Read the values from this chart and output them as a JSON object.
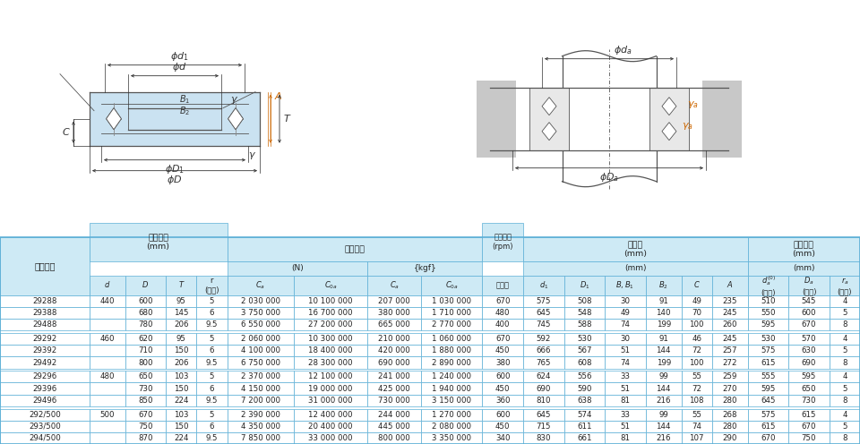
{
  "header_light": "#ceeaf5",
  "white": "#ffffff",
  "border": "#5bafd6",
  "text_dark": "#333333",
  "orange": "#e07020",
  "blue_dim": "#4a7fa8",
  "bearing_blue": "#a8d0e8",
  "gray_bg": "#cccccc",
  "rows": [
    [
      "29288",
      "440",
      "600",
      "95",
      "5",
      "2 030 000",
      "10 100 000",
      "207 000",
      "1 030 000",
      "670",
      "575",
      "508",
      "30",
      "91",
      "49",
      "235",
      "510",
      "545",
      "4"
    ],
    [
      "29388",
      "",
      "680",
      "145",
      "6",
      "3 750 000",
      "16 700 000",
      "380 000",
      "1 710 000",
      "480",
      "645",
      "548",
      "49",
      "140",
      "70",
      "245",
      "550",
      "600",
      "5"
    ],
    [
      "29488",
      "",
      "780",
      "206",
      "9.5",
      "6 550 000",
      "27 200 000",
      "665 000",
      "2 770 000",
      "400",
      "745",
      "588",
      "74",
      "199",
      "100",
      "260",
      "595",
      "670",
      "8"
    ],
    [
      "29292",
      "460",
      "620",
      "95",
      "5",
      "2 060 000",
      "10 300 000",
      "210 000",
      "1 060 000",
      "670",
      "592",
      "530",
      "30",
      "91",
      "46",
      "245",
      "530",
      "570",
      "4"
    ],
    [
      "29392",
      "",
      "710",
      "150",
      "6",
      "4 100 000",
      "18 400 000",
      "420 000",
      "1 880 000",
      "450",
      "666",
      "567",
      "51",
      "144",
      "72",
      "257",
      "575",
      "630",
      "5"
    ],
    [
      "29492",
      "",
      "800",
      "206",
      "9.5",
      "6 750 000",
      "28 300 000",
      "690 000",
      "2 890 000",
      "380",
      "765",
      "608",
      "74",
      "199",
      "100",
      "272",
      "615",
      "690",
      "8"
    ],
    [
      "29296",
      "480",
      "650",
      "103",
      "5",
      "2 370 000",
      "12 100 000",
      "241 000",
      "1 240 000",
      "600",
      "624",
      "556",
      "33",
      "99",
      "55",
      "259",
      "555",
      "595",
      "4"
    ],
    [
      "29396",
      "",
      "730",
      "150",
      "6",
      "4 150 000",
      "19 000 000",
      "425 000",
      "1 940 000",
      "450",
      "690",
      "590",
      "51",
      "144",
      "72",
      "270",
      "595",
      "650",
      "5"
    ],
    [
      "29496",
      "",
      "850",
      "224",
      "9.5",
      "7 200 000",
      "31 000 000",
      "730 000",
      "3 150 000",
      "360",
      "810",
      "638",
      "81",
      "216",
      "108",
      "280",
      "645",
      "730",
      "8"
    ],
    [
      "292/500",
      "500",
      "670",
      "103",
      "5",
      "2 390 000",
      "12 400 000",
      "244 000",
      "1 270 000",
      "600",
      "645",
      "574",
      "33",
      "99",
      "55",
      "268",
      "575",
      "615",
      "4"
    ],
    [
      "293/500",
      "",
      "750",
      "150",
      "6",
      "4 350 000",
      "20 400 000",
      "445 000",
      "2 080 000",
      "450",
      "715",
      "611",
      "51",
      "144",
      "74",
      "280",
      "615",
      "670",
      "5"
    ],
    [
      "294/500",
      "",
      "870",
      "224",
      "9.5",
      "7 850 000",
      "33 000 000",
      "800 000",
      "3 350 000",
      "340",
      "830",
      "661",
      "81",
      "216",
      "107",
      "290",
      "670",
      "750",
      "8"
    ]
  ],
  "col_widths_rel": [
    7.0,
    2.8,
    3.2,
    2.4,
    2.4,
    5.2,
    5.8,
    4.2,
    4.8,
    3.2,
    3.2,
    3.2,
    3.2,
    2.8,
    2.4,
    2.8,
    3.2,
    3.2,
    2.4
  ]
}
